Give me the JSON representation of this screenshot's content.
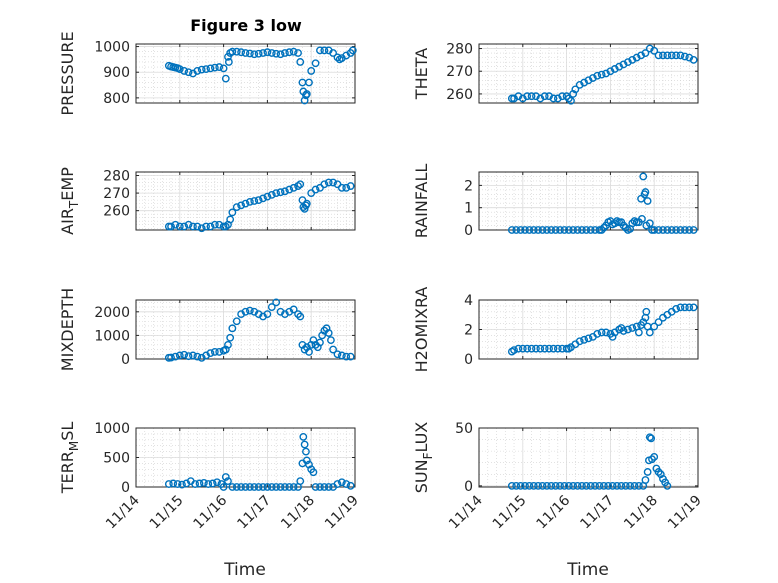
{
  "figure": {
    "title": "Figure 3 low",
    "xlabel": "Time"
  },
  "chart_data": [
    {
      "type": "scatter",
      "ylabel": "PRESSURE",
      "ylim": [
        780,
        1010
      ],
      "yticks": [
        800,
        900,
        1000
      ],
      "xlim": [
        0,
        5
      ],
      "xticks": [
        "11/14",
        "11/15",
        "11/16",
        "11/17",
        "11/18",
        "11/19"
      ],
      "grid": true,
      "x": [
        0.75,
        0.8,
        0.85,
        0.9,
        0.95,
        1.0,
        1.1,
        1.2,
        1.3,
        1.4,
        1.5,
        1.6,
        1.7,
        1.8,
        1.9,
        2.0,
        2.05,
        2.1,
        2.12,
        2.15,
        2.2,
        2.3,
        2.4,
        2.5,
        2.6,
        2.7,
        2.8,
        2.9,
        3.0,
        3.1,
        3.2,
        3.3,
        3.4,
        3.5,
        3.6,
        3.7,
        3.75,
        3.8,
        3.82,
        3.85,
        3.88,
        3.9,
        3.95,
        4.0,
        4.1,
        4.2,
        4.3,
        4.4,
        4.5,
        4.6,
        4.65,
        4.7,
        4.8,
        4.9,
        4.95
      ],
      "values": [
        925,
        922,
        920,
        918,
        916,
        912,
        905,
        900,
        895,
        905,
        910,
        912,
        915,
        918,
        920,
        915,
        875,
        960,
        940,
        975,
        980,
        980,
        978,
        975,
        973,
        970,
        972,
        975,
        978,
        975,
        972,
        970,
        975,
        978,
        980,
        975,
        940,
        860,
        825,
        790,
        810,
        815,
        860,
        905,
        935,
        985,
        985,
        985,
        975,
        958,
        950,
        955,
        965,
        975,
        985
      ]
    },
    {
      "type": "scatter",
      "ylabel": "THETA",
      "ylim": [
        256,
        282
      ],
      "yticks": [
        260,
        270,
        280
      ],
      "xlim": [
        0,
        5
      ],
      "xticks": [
        "11/14",
        "11/15",
        "11/16",
        "11/17",
        "11/18",
        "11/19"
      ],
      "grid": true,
      "x": [
        0.75,
        0.8,
        0.9,
        1.0,
        1.1,
        1.2,
        1.3,
        1.4,
        1.5,
        1.6,
        1.7,
        1.8,
        1.9,
        2.0,
        2.05,
        2.1,
        2.15,
        2.2,
        2.3,
        2.4,
        2.5,
        2.6,
        2.7,
        2.8,
        2.9,
        3.0,
        3.1,
        3.2,
        3.3,
        3.4,
        3.5,
        3.6,
        3.7,
        3.8,
        3.9,
        4.0,
        4.1,
        4.2,
        4.3,
        4.4,
        4.5,
        4.6,
        4.7,
        4.8,
        4.9
      ],
      "values": [
        258,
        258,
        259,
        258,
        259,
        259,
        259,
        258,
        259,
        259,
        258,
        258,
        259,
        259,
        258,
        257,
        260,
        262,
        264,
        265,
        266,
        267,
        268,
        268.5,
        269,
        270,
        271,
        272,
        273,
        274,
        275,
        276,
        277,
        278,
        280,
        279,
        277,
        277,
        277,
        277,
        277,
        277,
        276.5,
        276,
        275
      ]
    },
    {
      "type": "scatter",
      "ylabel": "AIR_TEMP",
      "ylim": [
        249,
        282
      ],
      "yticks": [
        260,
        270,
        280
      ],
      "xlim": [
        0,
        5
      ],
      "xticks": [
        "11/14",
        "11/15",
        "11/16",
        "11/17",
        "11/18",
        "11/19"
      ],
      "grid": true,
      "x": [
        0.75,
        0.8,
        0.9,
        1.0,
        1.1,
        1.2,
        1.3,
        1.4,
        1.5,
        1.6,
        1.7,
        1.8,
        1.9,
        2.0,
        2.05,
        2.1,
        2.15,
        2.2,
        2.3,
        2.4,
        2.5,
        2.6,
        2.7,
        2.8,
        2.9,
        3.0,
        3.1,
        3.2,
        3.3,
        3.4,
        3.5,
        3.6,
        3.7,
        3.75,
        3.8,
        3.82,
        3.85,
        3.88,
        3.9,
        4.0,
        4.1,
        4.2,
        4.3,
        4.4,
        4.5,
        4.6,
        4.7,
        4.8,
        4.9
      ],
      "values": [
        251,
        251,
        252,
        251,
        251,
        252,
        251,
        251,
        250,
        251,
        251,
        252,
        252,
        251,
        251,
        252,
        255,
        259,
        262,
        263,
        264,
        265,
        265.5,
        266,
        267,
        268,
        269,
        270,
        270.5,
        271,
        272,
        273,
        274,
        275,
        266,
        262,
        261,
        263,
        264,
        270,
        272,
        273,
        275,
        276,
        276,
        275,
        273,
        273,
        274
      ]
    },
    {
      "type": "scatter",
      "ylabel": "RAINFALL",
      "ylim": [
        0,
        2.6
      ],
      "yticks": [
        0,
        1,
        2
      ],
      "xlim": [
        0,
        5
      ],
      "xticks": [
        "11/14",
        "11/15",
        "11/16",
        "11/17",
        "11/18",
        "11/19"
      ],
      "grid": true,
      "x": [
        0.75,
        0.85,
        0.95,
        1.05,
        1.15,
        1.25,
        1.35,
        1.45,
        1.55,
        1.65,
        1.75,
        1.85,
        1.95,
        2.05,
        2.15,
        2.25,
        2.35,
        2.45,
        2.55,
        2.65,
        2.75,
        2.8,
        2.85,
        2.9,
        2.95,
        3.0,
        3.05,
        3.1,
        3.15,
        3.2,
        3.25,
        3.3,
        3.35,
        3.4,
        3.45,
        3.5,
        3.55,
        3.6,
        3.65,
        3.7,
        3.72,
        3.75,
        3.78,
        3.8,
        3.82,
        3.85,
        3.9,
        3.95,
        4.0,
        4.1,
        4.2,
        4.3,
        4.4,
        4.5,
        4.6,
        4.7,
        4.8,
        4.9
      ],
      "values": [
        0,
        0,
        0,
        0,
        0,
        0,
        0,
        0,
        0,
        0,
        0,
        0,
        0,
        0,
        0,
        0,
        0,
        0,
        0,
        0,
        0,
        0,
        0.1,
        0.2,
        0.35,
        0.4,
        0.25,
        0.3,
        0.4,
        0.35,
        0.35,
        0.2,
        0.1,
        0,
        0.05,
        0.3,
        0.4,
        0.35,
        0.35,
        1.4,
        0.5,
        2.4,
        1.6,
        1.7,
        0.2,
        1.3,
        0.3,
        0,
        0,
        0,
        0,
        0,
        0,
        0,
        0,
        0,
        0,
        0
      ]
    },
    {
      "type": "scatter",
      "ylabel": "MIXDEPTH",
      "ylim": [
        0,
        2500
      ],
      "yticks": [
        0,
        1000,
        2000
      ],
      "xlim": [
        0,
        5
      ],
      "xticks": [
        "11/14",
        "11/15",
        "11/16",
        "11/17",
        "11/18",
        "11/19"
      ],
      "grid": true,
      "x": [
        0.75,
        0.8,
        0.9,
        1.0,
        1.1,
        1.2,
        1.3,
        1.4,
        1.5,
        1.6,
        1.7,
        1.8,
        1.9,
        2.0,
        2.05,
        2.1,
        2.15,
        2.2,
        2.3,
        2.4,
        2.5,
        2.6,
        2.7,
        2.8,
        2.9,
        3.0,
        3.1,
        3.2,
        3.3,
        3.4,
        3.5,
        3.6,
        3.7,
        3.75,
        3.8,
        3.85,
        3.9,
        3.95,
        4.0,
        4.05,
        4.1,
        4.15,
        4.2,
        4.25,
        4.3,
        4.35,
        4.4,
        4.45,
        4.5,
        4.6,
        4.7,
        4.8,
        4.9
      ],
      "values": [
        50,
        60,
        100,
        150,
        180,
        120,
        150,
        100,
        50,
        150,
        250,
        300,
        300,
        350,
        400,
        600,
        900,
        1300,
        1600,
        1900,
        2000,
        2050,
        2000,
        1900,
        1800,
        1900,
        2200,
        2400,
        2000,
        1900,
        2000,
        2100,
        1900,
        1800,
        600,
        400,
        500,
        300,
        600,
        800,
        600,
        500,
        700,
        1000,
        1200,
        1300,
        1100,
        800,
        400,
        200,
        150,
        100,
        100
      ]
    },
    {
      "type": "scatter",
      "ylabel": "H2OMIXRA",
      "ylim": [
        0,
        4
      ],
      "yticks": [
        0,
        2,
        4
      ],
      "xlim": [
        0,
        5
      ],
      "xticks": [
        "11/14",
        "11/15",
        "11/16",
        "11/17",
        "11/18",
        "11/19"
      ],
      "grid": true,
      "x": [
        0.75,
        0.8,
        0.9,
        1.0,
        1.1,
        1.2,
        1.3,
        1.4,
        1.5,
        1.6,
        1.7,
        1.8,
        1.9,
        2.0,
        2.05,
        2.1,
        2.2,
        2.3,
        2.4,
        2.5,
        2.6,
        2.7,
        2.8,
        2.9,
        3.0,
        3.05,
        3.1,
        3.2,
        3.25,
        3.3,
        3.4,
        3.5,
        3.6,
        3.65,
        3.7,
        3.75,
        3.8,
        3.82,
        3.85,
        3.9,
        4.0,
        4.1,
        4.2,
        4.3,
        4.4,
        4.5,
        4.6,
        4.7,
        4.8,
        4.9
      ],
      "values": [
        0.5,
        0.6,
        0.7,
        0.7,
        0.7,
        0.7,
        0.7,
        0.7,
        0.7,
        0.7,
        0.7,
        0.7,
        0.7,
        0.7,
        0.7,
        0.8,
        1.0,
        1.2,
        1.3,
        1.4,
        1.5,
        1.7,
        1.8,
        1.8,
        1.7,
        1.5,
        1.8,
        2.0,
        2.1,
        1.9,
        2.0,
        2.1,
        2.2,
        1.8,
        2.3,
        2.5,
        2.8,
        3.2,
        2.2,
        1.8,
        2.2,
        2.5,
        2.8,
        3.0,
        3.2,
        3.4,
        3.5,
        3.5,
        3.5,
        3.5
      ]
    },
    {
      "type": "scatter",
      "ylabel": "TERR_MSL",
      "ylim": [
        0,
        1000
      ],
      "yticks": [
        0,
        500,
        1000
      ],
      "xlim": [
        0,
        5
      ],
      "xticks": [
        "11/14",
        "11/15",
        "11/16",
        "11/17",
        "11/18",
        "11/19"
      ],
      "grid": true,
      "x": [
        0.75,
        0.85,
        0.95,
        1.05,
        1.15,
        1.25,
        1.35,
        1.45,
        1.55,
        1.65,
        1.75,
        1.85,
        1.95,
        2.0,
        2.05,
        2.1,
        2.2,
        2.3,
        2.4,
        2.5,
        2.6,
        2.7,
        2.8,
        2.9,
        3.0,
        3.1,
        3.2,
        3.3,
        3.4,
        3.5,
        3.6,
        3.7,
        3.75,
        3.8,
        3.82,
        3.85,
        3.88,
        3.9,
        3.95,
        4.0,
        4.05,
        4.1,
        4.2,
        4.3,
        4.4,
        4.5,
        4.6,
        4.7,
        4.8,
        4.9
      ],
      "values": [
        50,
        60,
        50,
        40,
        60,
        100,
        50,
        60,
        70,
        50,
        60,
        80,
        50,
        0,
        170,
        100,
        0,
        0,
        0,
        0,
        0,
        0,
        0,
        0,
        0,
        0,
        0,
        0,
        0,
        0,
        0,
        0,
        100,
        400,
        850,
        720,
        600,
        450,
        380,
        300,
        250,
        0,
        0,
        0,
        0,
        0,
        50,
        80,
        50,
        20
      ]
    },
    {
      "type": "scatter",
      "ylabel": "SUN_FLUX",
      "ylim": [
        -1,
        50
      ],
      "yticks": [
        0,
        50
      ],
      "xlim": [
        0,
        5
      ],
      "xticks": [
        "11/14",
        "11/15",
        "11/16",
        "11/17",
        "11/18",
        "11/19"
      ],
      "grid": true,
      "x": [
        0.75,
        0.85,
        0.95,
        1.05,
        1.15,
        1.25,
        1.35,
        1.45,
        1.55,
        1.65,
        1.75,
        1.85,
        1.95,
        2.05,
        2.15,
        2.25,
        2.35,
        2.45,
        2.55,
        2.65,
        2.75,
        2.85,
        2.95,
        3.05,
        3.15,
        3.25,
        3.35,
        3.45,
        3.55,
        3.65,
        3.75,
        3.8,
        3.85,
        3.88,
        3.9,
        3.93,
        3.95,
        4.0,
        4.05,
        4.1,
        4.15,
        4.2,
        4.25,
        4.3
      ],
      "values": [
        0,
        0,
        0,
        0,
        0,
        0,
        0,
        0,
        0,
        0,
        0,
        0,
        0,
        0,
        0,
        0,
        0,
        0,
        0,
        0,
        0,
        0,
        0,
        0,
        0,
        0,
        0,
        0,
        0,
        0,
        0,
        5,
        12,
        22,
        42,
        41,
        23,
        25,
        15,
        12,
        10,
        6,
        3,
        0
      ]
    }
  ]
}
